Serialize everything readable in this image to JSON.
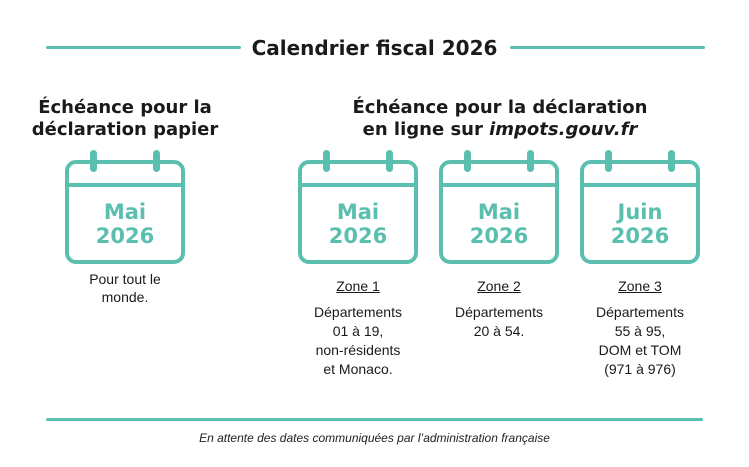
{
  "title": "Calendrier fiscal 2026",
  "paper": {
    "heading_line1": "Échéance pour la",
    "heading_line2": "déclaration papier",
    "month": "Mai",
    "year": "2026",
    "note_line1": "Pour tout le",
    "note_line2": "monde."
  },
  "online": {
    "heading_line1": "Échéance pour la déclaration",
    "heading_line2_prefix": "en ligne sur ",
    "heading_line2_site": "impots.gouv.fr",
    "zones": [
      {
        "month": "Mai",
        "year": "2026",
        "zone": "Zone 1",
        "lines": [
          "Départements",
          "01 à 19,",
          "non-résidents",
          "et Monaco."
        ]
      },
      {
        "month": "Mai",
        "year": "2026",
        "zone": "Zone 2",
        "lines": [
          "Départements",
          "20 à 54."
        ]
      },
      {
        "month": "Juin",
        "year": "2026",
        "zone": "Zone 3",
        "lines": [
          "Départements",
          "55 à 95,",
          "DOM et TOM",
          "(971 à 976)"
        ]
      }
    ]
  },
  "footer": "En attente des dates communiquées par l’administration française",
  "colors": {
    "accent": "#5bbfb0",
    "text": "#1a1a1a"
  },
  "icons": [
    "calendar-icon"
  ]
}
